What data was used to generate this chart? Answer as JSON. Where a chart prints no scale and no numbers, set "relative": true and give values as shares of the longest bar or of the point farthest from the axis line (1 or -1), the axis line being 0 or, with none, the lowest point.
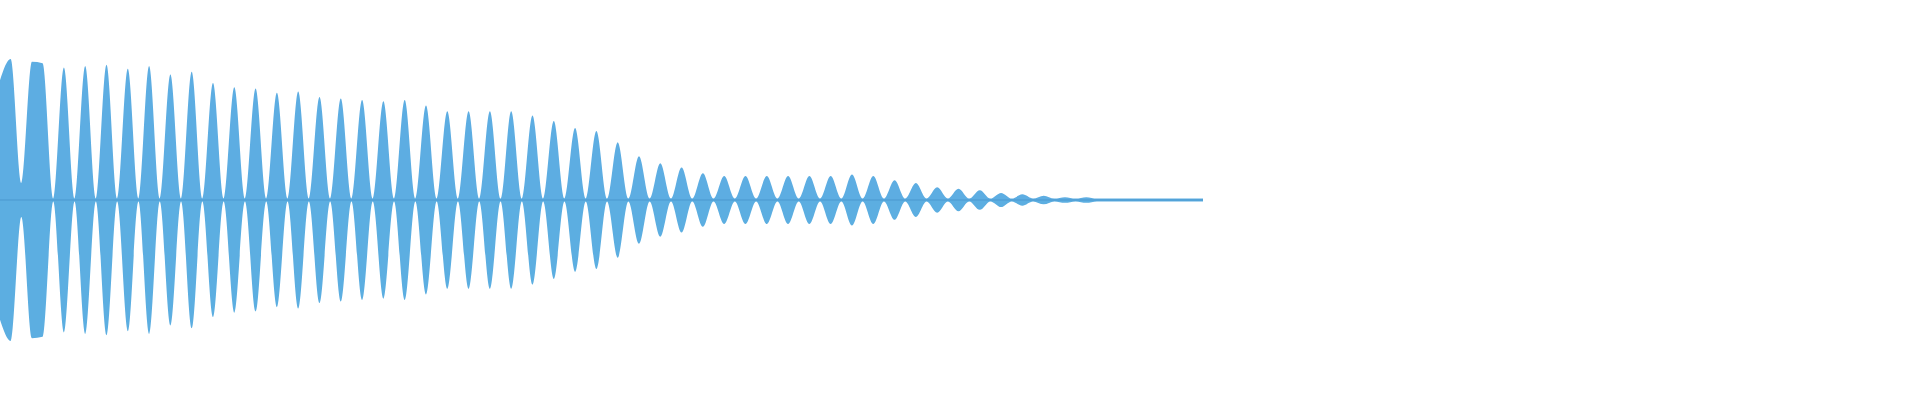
{
  "chart_data": {
    "type": "area",
    "relative": true,
    "grid": false,
    "categories": [
      null,
      null,
      null,
      null,
      null,
      null,
      null,
      null,
      null,
      null,
      null,
      null,
      null,
      null,
      null,
      null,
      null,
      null,
      null,
      null,
      null,
      null,
      null,
      null,
      null,
      null,
      null,
      null,
      null,
      null,
      null,
      null,
      null,
      null,
      null,
      null,
      null,
      null,
      null,
      null,
      null,
      null,
      null,
      null,
      null,
      null,
      null,
      null,
      null,
      null,
      null,
      null,
      null,
      null,
      null,
      null,
      null,
      null,
      null,
      null,
      null,
      null,
      null,
      null,
      null,
      null,
      null,
      null,
      null,
      null,
      null,
      null,
      null,
      null,
      null,
      null,
      null,
      null,
      null,
      null,
      null,
      null,
      null,
      null,
      null,
      null,
      null,
      null,
      null,
      null,
      null,
      null,
      null,
      null,
      null,
      null,
      null,
      null,
      null,
      null,
      null,
      null,
      null,
      null,
      null,
      null,
      null,
      null,
      null,
      null,
      null,
      null,
      null,
      null
    ],
    "series": [
      {
        "color": "#5dade2",
        "values": [
          0.85,
          1.0,
          0.12,
          0.98,
          0.97,
          0.01,
          0.94,
          0.01,
          0.95,
          0.01,
          0.96,
          0.01,
          0.93,
          0.01,
          0.95,
          0.01,
          0.89,
          0.01,
          0.91,
          0.01,
          0.83,
          0.01,
          0.8,
          0.01,
          0.79,
          0.01,
          0.76,
          0.01,
          0.77,
          0.01,
          0.73,
          0.01,
          0.72,
          0.01,
          0.71,
          0.01,
          0.7,
          0.01,
          0.71,
          0.01,
          0.67,
          0.01,
          0.63,
          0.01,
          0.63,
          0.01,
          0.63,
          0.01,
          0.63,
          0.01,
          0.6,
          0.01,
          0.56,
          0.01,
          0.51,
          0.01,
          0.49,
          0.01,
          0.41,
          0.01,
          0.31,
          0.01,
          0.26,
          0.01,
          0.23,
          0.01,
          0.19,
          0.01,
          0.17,
          0.01,
          0.17,
          0.01,
          0.17,
          0.01,
          0.17,
          0.01,
          0.17,
          0.01,
          0.17,
          0.01,
          0.18,
          0.01,
          0.17,
          0.01,
          0.14,
          0.01,
          0.12,
          0.01,
          0.09,
          0.01,
          0.08,
          0.01,
          0.07,
          0.01,
          0.05,
          0.01,
          0.04,
          0.01,
          0.03,
          0.01,
          0.02,
          0.01,
          0.02,
          0.01,
          0.01,
          0.01,
          0.01,
          0.01,
          0.01,
          0.01,
          0.01,
          0.01,
          0.01,
          0.01
        ]
      },
      {
        "color": "#5caee1",
        "values": [
          -0.85,
          -1.0,
          -0.12,
          -0.98,
          -0.97,
          -0.01,
          -0.94,
          -0.01,
          -0.95,
          -0.01,
          -0.96,
          -0.01,
          -0.93,
          -0.01,
          -0.95,
          -0.01,
          -0.89,
          -0.01,
          -0.91,
          -0.01,
          -0.83,
          -0.01,
          -0.8,
          -0.01,
          -0.79,
          -0.01,
          -0.76,
          -0.01,
          -0.77,
          -0.01,
          -0.73,
          -0.01,
          -0.72,
          -0.01,
          -0.71,
          -0.01,
          -0.7,
          -0.01,
          -0.71,
          -0.01,
          -0.67,
          -0.01,
          -0.63,
          -0.01,
          -0.63,
          -0.01,
          -0.63,
          -0.01,
          -0.63,
          -0.01,
          -0.6,
          -0.01,
          -0.56,
          -0.01,
          -0.51,
          -0.01,
          -0.49,
          -0.01,
          -0.41,
          -0.01,
          -0.31,
          -0.01,
          -0.26,
          -0.01,
          -0.23,
          -0.01,
          -0.19,
          -0.01,
          -0.17,
          -0.01,
          -0.17,
          -0.01,
          -0.17,
          -0.01,
          -0.17,
          -0.01,
          -0.17,
          -0.01,
          -0.17,
          -0.01,
          -0.18,
          -0.01,
          -0.17,
          -0.01,
          -0.14,
          -0.01,
          -0.12,
          -0.01,
          -0.09,
          -0.01,
          -0.08,
          -0.01,
          -0.07,
          -0.01,
          -0.05,
          -0.01,
          -0.04,
          -0.01,
          -0.03,
          -0.01,
          -0.02,
          -0.01,
          -0.02,
          -0.01,
          -0.01,
          -0.01,
          -0.01,
          -0.01,
          -0.01,
          -0.01,
          -0.01,
          -0.01,
          -0.01,
          -0.01
        ]
      }
    ],
    "ref_lines": [
      {
        "axis": "y",
        "value": 0,
        "color": "#4a98cf"
      }
    ]
  }
}
